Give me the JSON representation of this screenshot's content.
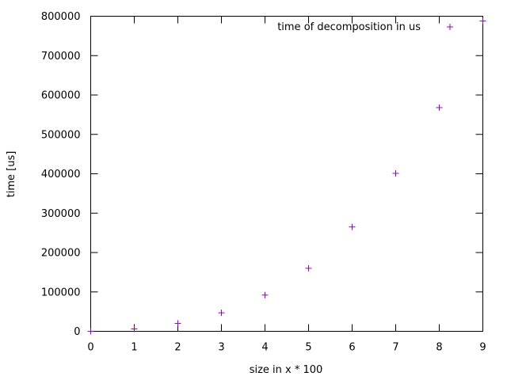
{
  "chart_data": {
    "type": "scatter",
    "title": "",
    "xlabel": "size in x * 100",
    "ylabel": "time [us]",
    "xlim": [
      0,
      9
    ],
    "ylim": [
      0,
      800000
    ],
    "x_ticks": [
      "0",
      "1",
      "2",
      "3",
      "4",
      "5",
      "6",
      "7",
      "8",
      "9"
    ],
    "y_ticks": [
      "0",
      "100000",
      "200000",
      "300000",
      "400000",
      "500000",
      "600000",
      "700000",
      "800000"
    ],
    "grid": false,
    "legend_position": "top-right",
    "series": [
      {
        "name": "time of decomposition in us",
        "color": "#9400d3",
        "marker": "plus",
        "x": [
          0,
          1,
          2,
          3,
          4,
          5,
          6,
          7,
          8,
          9
        ],
        "y": [
          0,
          6000,
          20000,
          47000,
          92000,
          160000,
          265000,
          401000,
          568000,
          788000
        ]
      }
    ]
  }
}
